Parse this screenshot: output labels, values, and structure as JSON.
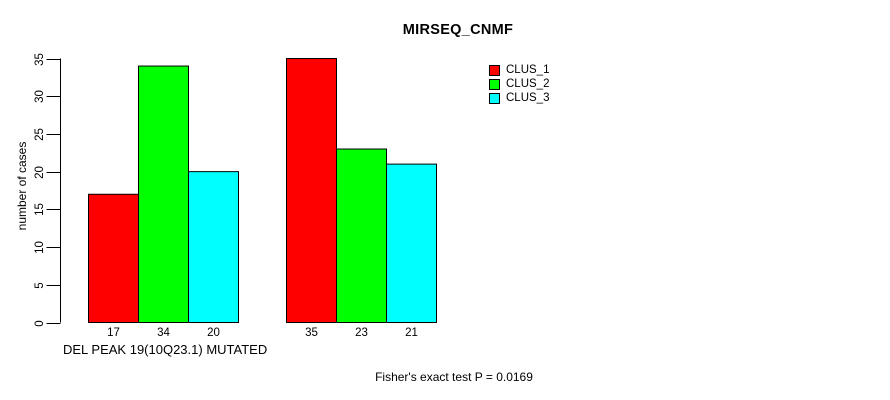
{
  "page": {
    "background_color": "#ffffff",
    "text_color": "#000000"
  },
  "chart_data": {
    "type": "bar",
    "title": "MIRSEQ_CNMF",
    "ylabel": "number of cases",
    "xlabel": "DEL PEAK 19(10Q23.1) MUTATED",
    "annotation": "Fisher's exact test P = 0.0169",
    "ylim": [
      0,
      35
    ],
    "yticks": [
      0,
      5,
      10,
      15,
      20,
      25,
      30,
      35
    ],
    "grid": false,
    "legend_position": "top-right",
    "bar_border_color": "#000000",
    "axis_color": "#000000",
    "series": [
      {
        "name": "CLUS_1",
        "color": "#ff0000",
        "values": [
          17,
          35
        ]
      },
      {
        "name": "CLUS_2",
        "color": "#00ff00",
        "values": [
          34,
          23
        ]
      },
      {
        "name": "CLUS_3",
        "color": "#00ffff",
        "values": [
          20,
          21
        ]
      }
    ],
    "bar_value_labels": [
      [
        "17",
        "34",
        "20"
      ],
      [
        "35",
        "23",
        "21"
      ]
    ]
  }
}
